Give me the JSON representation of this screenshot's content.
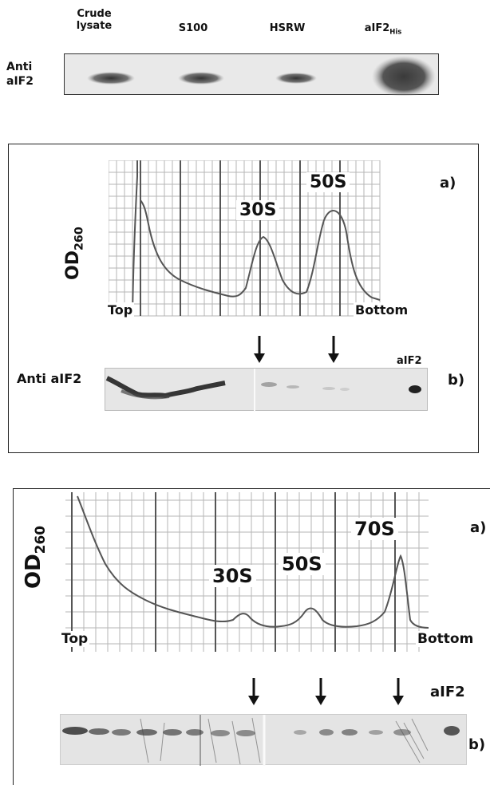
{
  "top_blot": {
    "lanes": [
      "Crude lysate",
      "S100",
      "HSRW",
      "aIF2"
    ],
    "lane_subscript": "His",
    "row_label": "Anti aIF2"
  },
  "panel1": {
    "y_label": "OD",
    "y_label_sub": "260",
    "peaks": [
      "30S",
      "50S"
    ],
    "x_left": "Top",
    "x_right": "Bottom",
    "tag_a": "a)",
    "tag_b": "b)",
    "blot_label": "Anti aIF2",
    "blot_marker": "aIF2"
  },
  "panel2": {
    "y_label": "OD",
    "y_label_sub": "260",
    "peaks": [
      "30S",
      "50S",
      "70S"
    ],
    "x_left": "Top",
    "x_right": "Bottom",
    "tag_a": "a)",
    "tag_b": "b)",
    "blot_marker": "aIF2"
  }
}
